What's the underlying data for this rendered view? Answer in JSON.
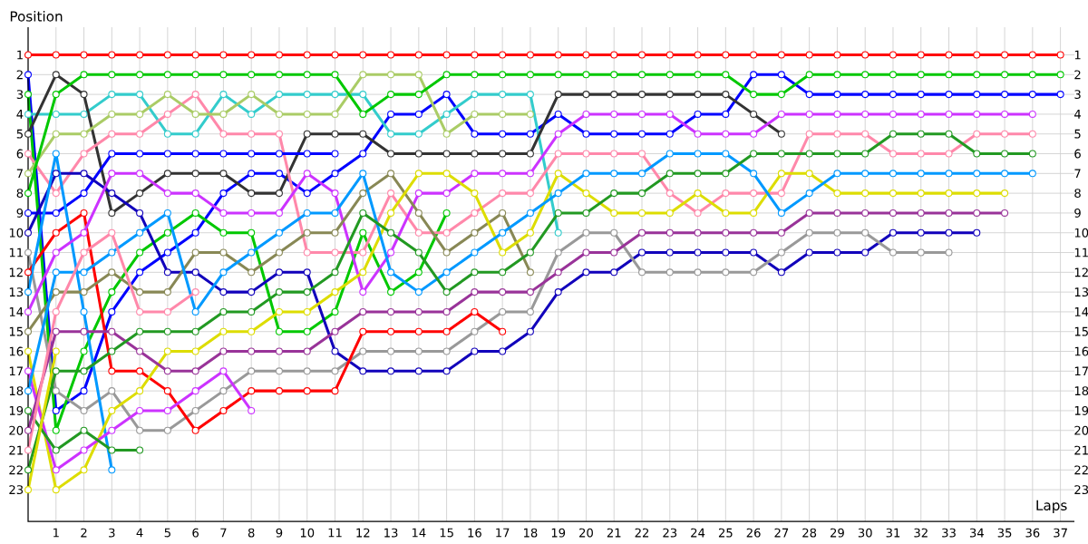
{
  "chart_data": {
    "type": "line",
    "xlabel": "Laps",
    "ylabel": "Position",
    "x": [
      0,
      1,
      2,
      3,
      4,
      5,
      6,
      7,
      8,
      9,
      10,
      11,
      12,
      13,
      14,
      15,
      16,
      17,
      18,
      19,
      20,
      21,
      22,
      23,
      24,
      25,
      26,
      27,
      28,
      29,
      30,
      31,
      32,
      33,
      34,
      35,
      36,
      37
    ],
    "xlim": [
      0,
      37.5
    ],
    "xticks": [
      1,
      2,
      3,
      4,
      5,
      6,
      7,
      8,
      9,
      10,
      11,
      12,
      13,
      14,
      15,
      16,
      17,
      18,
      19,
      20,
      21,
      22,
      23,
      24,
      25,
      26,
      27,
      28,
      29,
      30,
      31,
      32,
      33,
      34,
      35,
      36,
      37
    ],
    "ylim": [
      24.6,
      -0.4
    ],
    "yticks": [
      1,
      2,
      3,
      4,
      5,
      6,
      7,
      8,
      9,
      10,
      11,
      12,
      13,
      14,
      15,
      16,
      17,
      18,
      19,
      20,
      21,
      22,
      23
    ],
    "y2lim": [
      24.6,
      -0.4
    ],
    "y2ticks": [
      1,
      2,
      3,
      4,
      5,
      6,
      7,
      8,
      9,
      10,
      11,
      12,
      13,
      14,
      15,
      16,
      17,
      18,
      19,
      20,
      21,
      22,
      23
    ],
    "grid": true,
    "marker": "circle",
    "line_style": "solid",
    "series": [
      {
        "color": "#ff0000",
        "values": [
          1,
          1,
          1,
          1,
          1,
          1,
          1,
          1,
          1,
          1,
          1,
          1,
          1,
          1,
          1,
          1,
          1,
          1,
          1,
          1,
          1,
          1,
          1,
          1,
          1,
          1,
          1,
          1,
          1,
          1,
          1,
          1,
          1,
          1,
          1,
          1,
          1,
          1
        ]
      },
      {
        "color": "#0000ff",
        "values": [
          2,
          19,
          18,
          14,
          12,
          11,
          10,
          8,
          7,
          7,
          8,
          7,
          6,
          4,
          4,
          3,
          5,
          5,
          5,
          4,
          5,
          5,
          5,
          5,
          4,
          4,
          2,
          2,
          3,
          3,
          3,
          3,
          3,
          3,
          3,
          3,
          3,
          3
        ]
      },
      {
        "color": "#00c800",
        "values": [
          3,
          20,
          16,
          13,
          11,
          10,
          9,
          10,
          10,
          15,
          15,
          14,
          10,
          13,
          12,
          9,
          null,
          null,
          null,
          null,
          null,
          null,
          null,
          null,
          null,
          null,
          null,
          null,
          null,
          null,
          null,
          null,
          null,
          null,
          null,
          null,
          null,
          null
        ]
      },
      {
        "color": "#33cccc",
        "values": [
          4,
          4,
          4,
          3,
          3,
          5,
          5,
          3,
          4,
          3,
          3,
          3,
          3,
          5,
          5,
          4,
          3,
          3,
          3,
          10,
          null,
          null,
          null,
          null,
          null,
          null,
          null,
          null,
          null,
          null,
          null,
          null,
          null,
          null,
          null,
          null,
          null,
          null
        ]
      },
      {
        "color": "#333333",
        "values": [
          5,
          2,
          3,
          9,
          8,
          7,
          7,
          7,
          8,
          8,
          5,
          5,
          5,
          6,
          6,
          6,
          6,
          6,
          6,
          3,
          3,
          3,
          3,
          3,
          3,
          3,
          4,
          5,
          null,
          null,
          null,
          null,
          null,
          null,
          null,
          null,
          null,
          null
        ]
      },
      {
        "color": "#ff88aa",
        "values": [
          6,
          8,
          6,
          5,
          5,
          4,
          3,
          5,
          5,
          5,
          11,
          11,
          11,
          8,
          10,
          10,
          9,
          8,
          8,
          6,
          6,
          6,
          6,
          8,
          9,
          8,
          8,
          8,
          5,
          5,
          5,
          6,
          6,
          6,
          5,
          5,
          5,
          null
        ]
      },
      {
        "color": "#aacc66",
        "values": [
          7,
          5,
          5,
          4,
          4,
          3,
          4,
          4,
          3,
          4,
          4,
          4,
          2,
          2,
          2,
          5,
          4,
          4,
          4,
          null,
          null,
          null,
          null,
          null,
          null,
          null,
          null,
          null,
          null,
          null,
          null,
          null,
          null,
          null,
          null,
          null,
          null,
          null
        ]
      },
      {
        "color": "#00c800",
        "values": [
          8,
          3,
          2,
          2,
          2,
          2,
          2,
          2,
          2,
          2,
          2,
          2,
          4,
          3,
          3,
          2,
          2,
          2,
          2,
          2,
          2,
          2,
          2,
          2,
          2,
          2,
          3,
          3,
          2,
          2,
          2,
          2,
          2,
          2,
          2,
          2,
          2,
          2
        ]
      },
      {
        "color": "#0000ff",
        "values": [
          9,
          9,
          8,
          6,
          6,
          6,
          6,
          6,
          6,
          6,
          6,
          6,
          null,
          null,
          null,
          null,
          null,
          null,
          null,
          null,
          null,
          null,
          null,
          null,
          null,
          null,
          null,
          null,
          null,
          null,
          null,
          null,
          null,
          null,
          null,
          null,
          null,
          null
        ]
      },
      {
        "color": "#1100bb",
        "values": [
          10,
          7,
          7,
          8,
          9,
          12,
          12,
          13,
          13,
          12,
          12,
          16,
          17,
          17,
          17,
          17,
          16,
          16,
          15,
          13,
          12,
          12,
          11,
          11,
          11,
          11,
          11,
          12,
          11,
          11,
          11,
          10,
          10,
          10,
          10,
          null,
          null,
          null
        ]
      },
      {
        "color": "#999999",
        "values": [
          11,
          18,
          19,
          18,
          20,
          20,
          19,
          18,
          17,
          17,
          17,
          17,
          16,
          16,
          16,
          16,
          15,
          14,
          14,
          11,
          10,
          10,
          12,
          12,
          12,
          12,
          12,
          11,
          10,
          10,
          10,
          11,
          11,
          11,
          null,
          null,
          null,
          null
        ]
      },
      {
        "color": "#ff0000",
        "values": [
          12,
          10,
          9,
          17,
          17,
          18,
          20,
          19,
          18,
          18,
          18,
          18,
          15,
          15,
          15,
          15,
          14,
          15,
          null,
          null,
          null,
          null,
          null,
          null,
          null,
          null,
          null,
          null,
          null,
          null,
          null,
          null,
          null,
          null,
          null,
          null,
          null,
          null
        ]
      },
      {
        "color": "#0099ff",
        "values": [
          13,
          6,
          14,
          22,
          null,
          null,
          null,
          null,
          null,
          null,
          null,
          null,
          null,
          null,
          null,
          null,
          null,
          null,
          null,
          null,
          null,
          null,
          null,
          null,
          null,
          null,
          null,
          null,
          null,
          null,
          null,
          null,
          null,
          null,
          null,
          null,
          null,
          null
        ]
      },
      {
        "color": "#cc33ff",
        "values": [
          14,
          11,
          10,
          7,
          7,
          8,
          8,
          9,
          9,
          9,
          7,
          8,
          13,
          11,
          8,
          8,
          7,
          7,
          7,
          5,
          4,
          4,
          4,
          4,
          5,
          5,
          5,
          4,
          4,
          4,
          4,
          4,
          4,
          4,
          4,
          4,
          4,
          null
        ]
      },
      {
        "color": "#888855",
        "values": [
          15,
          13,
          13,
          12,
          13,
          13,
          11,
          11,
          12,
          11,
          10,
          10,
          8,
          7,
          9,
          11,
          10,
          9,
          12,
          null,
          null,
          null,
          null,
          null,
          null,
          null,
          null,
          null,
          null,
          null,
          null,
          null,
          null,
          null,
          null,
          null,
          null,
          null
        ]
      },
      {
        "color": "#dddd00",
        "values": [
          16,
          23,
          22,
          19,
          18,
          16,
          16,
          15,
          15,
          14,
          14,
          13,
          12,
          9,
          7,
          7,
          8,
          11,
          10,
          7,
          8,
          9,
          9,
          9,
          8,
          9,
          9,
          7,
          7,
          8,
          8,
          8,
          8,
          8,
          8,
          8,
          null,
          null
        ]
      },
      {
        "color": "#cc33ff",
        "values": [
          17,
          22,
          21,
          20,
          19,
          19,
          18,
          17,
          19,
          null,
          null,
          null,
          null,
          null,
          null,
          null,
          null,
          null,
          null,
          null,
          null,
          null,
          null,
          null,
          null,
          null,
          null,
          null,
          null,
          null,
          null,
          null,
          null,
          null,
          null,
          null,
          null,
          null
        ]
      },
      {
        "color": "#0099ff",
        "values": [
          18,
          12,
          12,
          11,
          10,
          9,
          14,
          12,
          11,
          10,
          9,
          9,
          7,
          12,
          13,
          12,
          11,
          10,
          9,
          8,
          7,
          7,
          7,
          6,
          6,
          6,
          7,
          9,
          8,
          7,
          7,
          7,
          7,
          7,
          7,
          7,
          7,
          null
        ]
      },
      {
        "color": "#229922",
        "values": [
          19,
          21,
          20,
          21,
          21,
          null,
          null,
          null,
          null,
          null,
          null,
          null,
          null,
          null,
          null,
          null,
          null,
          null,
          null,
          null,
          null,
          null,
          null,
          null,
          null,
          null,
          null,
          null,
          null,
          null,
          null,
          null,
          null,
          null,
          null,
          null,
          null,
          null
        ]
      },
      {
        "color": "#993399",
        "values": [
          20,
          15,
          15,
          15,
          16,
          17,
          17,
          16,
          16,
          16,
          16,
          15,
          14,
          14,
          14,
          14,
          13,
          13,
          13,
          12,
          11,
          11,
          10,
          10,
          10,
          10,
          10,
          10,
          9,
          9,
          9,
          9,
          9,
          9,
          9,
          9,
          null,
          null
        ]
      },
      {
        "color": "#ff88aa",
        "values": [
          21,
          14,
          11,
          10,
          14,
          14,
          13,
          null,
          null,
          null,
          null,
          null,
          null,
          null,
          null,
          null,
          null,
          null,
          null,
          null,
          null,
          null,
          null,
          null,
          null,
          null,
          null,
          null,
          null,
          null,
          null,
          null,
          null,
          null,
          null,
          null,
          null,
          null
        ]
      },
      {
        "color": "#229922",
        "values": [
          22,
          17,
          17,
          16,
          15,
          15,
          15,
          14,
          14,
          13,
          13,
          12,
          9,
          10,
          11,
          13,
          12,
          12,
          11,
          9,
          9,
          8,
          8,
          7,
          7,
          7,
          6,
          6,
          6,
          6,
          6,
          5,
          5,
          5,
          6,
          6,
          6,
          null
        ]
      },
      {
        "color": "#dddd00",
        "values": [
          23,
          16,
          null,
          null,
          null,
          null,
          null,
          null,
          null,
          null,
          null,
          null,
          null,
          null,
          null,
          null,
          null,
          null,
          null,
          null,
          null,
          null,
          null,
          null,
          null,
          null,
          null,
          null,
          null,
          null,
          null,
          null,
          null,
          null,
          null,
          null,
          null,
          null
        ]
      }
    ]
  }
}
